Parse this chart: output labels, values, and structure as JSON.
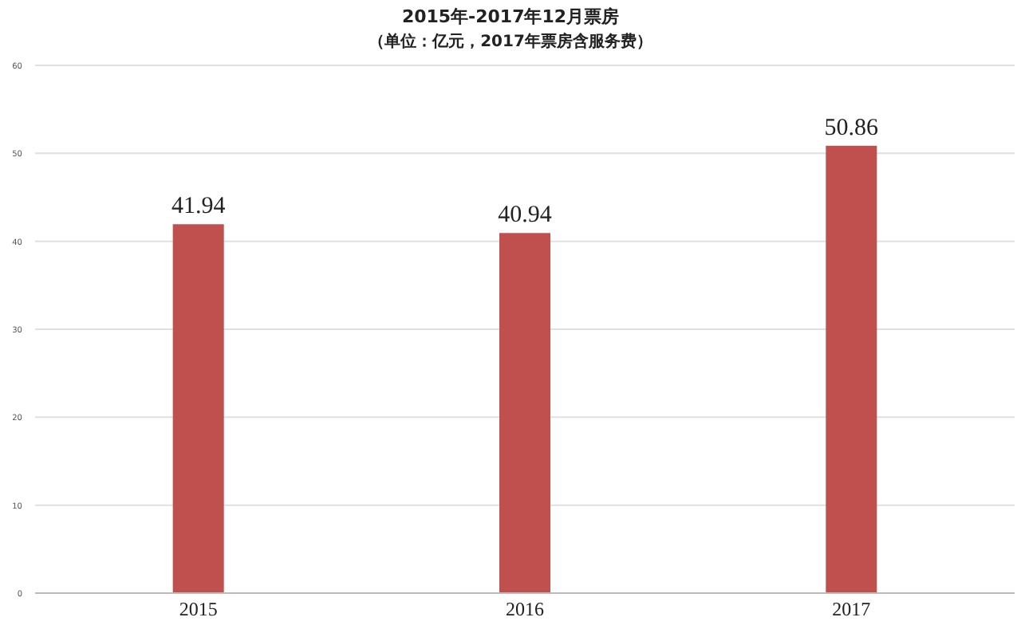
{
  "chart_data": {
    "type": "bar",
    "title": "2015年-2017年12月票房",
    "subtitle": "（单位：亿元，2017年票房含服务费）",
    "categories": [
      "2015",
      "2016",
      "2017"
    ],
    "values": [
      41.94,
      40.94,
      50.86
    ],
    "color": "#c0504d",
    "ylim": [
      0,
      60
    ],
    "yticks": [
      0,
      10,
      20,
      30,
      40,
      50,
      60
    ],
    "grid": "y",
    "data_labels": true
  }
}
